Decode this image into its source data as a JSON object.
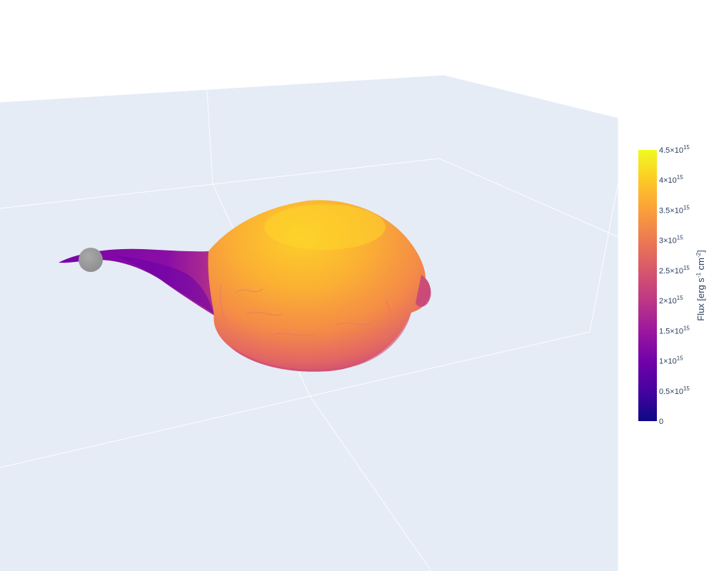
{
  "chart_data": {
    "type": "mesh3d",
    "title": "",
    "colorscale": "Plasma",
    "colorscale_stops": [
      "#0d0887",
      "#46039f",
      "#7201a8",
      "#9c179e",
      "#bd3786",
      "#d8576b",
      "#ed7953",
      "#fb9f3a",
      "#fdca26",
      "#f0f921"
    ],
    "colorbar": {
      "title_main": "Flux [erg s",
      "title_sup1": "-1",
      "title_mid": " cm",
      "title_sup2": "-2",
      "title_end": "]",
      "range": [
        0,
        4500000000000000.0
      ],
      "ticks": [
        {
          "value": 0,
          "mantissa": "0",
          "exponent": ""
        },
        {
          "value": 500000000000000.0,
          "mantissa": "0.5×10",
          "exponent": "15"
        },
        {
          "value": 1000000000000000.0,
          "mantissa": "1×10",
          "exponent": "15"
        },
        {
          "value": 1500000000000000.0,
          "mantissa": "1.5×10",
          "exponent": "15"
        },
        {
          "value": 2000000000000000.0,
          "mantissa": "2×10",
          "exponent": "15"
        },
        {
          "value": 2500000000000000.0,
          "mantissa": "2.5×10",
          "exponent": "15"
        },
        {
          "value": 3000000000000000.0,
          "mantissa": "3×10",
          "exponent": "15"
        },
        {
          "value": 3500000000000000.0,
          "mantissa": "3.5×10",
          "exponent": "15"
        },
        {
          "value": 4000000000000000.0,
          "mantissa": "4×10",
          "exponent": "15"
        },
        {
          "value": 4500000000000000.0,
          "mantissa": "4.5×10",
          "exponent": "15"
        }
      ]
    },
    "scene": {
      "background": "#e5ecf6",
      "grid_color": "#ffffff",
      "axis_labels_shown": false
    },
    "surface": {
      "description_colors": {
        "lobe_peak": "#fdc926",
        "lobe_mid": "#f89540",
        "lobe_edge": "#cc4778",
        "stream": "#7e03a8"
      }
    },
    "companion_star": {
      "color": "#9b9b9b"
    }
  }
}
